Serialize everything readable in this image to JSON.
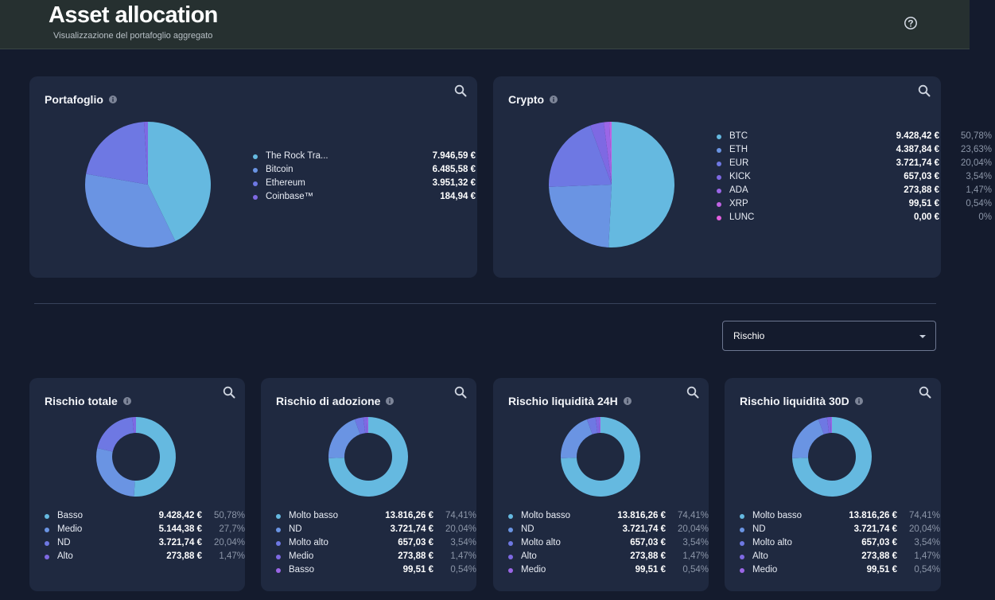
{
  "header": {
    "title": "Asset allocation",
    "subtitle": "Visualizzazione del portafoglio aggregato",
    "help_icon": "help-circle-icon"
  },
  "filter": {
    "selected": "Rischio",
    "icon": "caret-down-icon"
  },
  "colors": {
    "c1": "#65b9e0",
    "c2": "#6a94e3",
    "c3": "#6e78e3",
    "c4": "#7e69e3",
    "c5": "#9b66e6",
    "c6": "#c063e4",
    "c7": "#e35ede",
    "card_bg": "#1f2940",
    "page_bg": "#141b2d"
  },
  "cards": {
    "portafoglio": {
      "title": "Portafoglio",
      "chart_data": {
        "type": "pie",
        "categories": [
          "The Rock Tra...",
          "Bitcoin",
          "Ethereum",
          "Coinbase™"
        ],
        "values": [
          42.8,
          34.93,
          21.28,
          1
        ],
        "colors": [
          "#65b9e0",
          "#6a94e3",
          "#6e78e3",
          "#7e69e3"
        ]
      },
      "items": [
        {
          "label": "The Rock Tra...",
          "value": "7.946,59 €",
          "pct": "42,8%",
          "color": "#65b9e0"
        },
        {
          "label": "Bitcoin",
          "value": "6.485,58 €",
          "pct": "34,93%",
          "color": "#6a94e3"
        },
        {
          "label": "Ethereum",
          "value": "3.951,32 €",
          "pct": "21,28%",
          "color": "#6e78e3"
        },
        {
          "label": "Coinbase™",
          "value": "184,94 €",
          "pct": "1%",
          "color": "#7e69e3"
        }
      ]
    },
    "crypto": {
      "title": "Crypto",
      "chart_data": {
        "type": "pie",
        "categories": [
          "BTC",
          "ETH",
          "EUR",
          "KICK",
          "ADA",
          "XRP",
          "LUNC"
        ],
        "values": [
          50.78,
          23.63,
          20.04,
          3.54,
          1.47,
          0.54,
          0
        ],
        "colors": [
          "#65b9e0",
          "#6a94e3",
          "#6e78e3",
          "#7e69e3",
          "#9b66e6",
          "#c063e4",
          "#e35ede"
        ]
      },
      "items": [
        {
          "label": "BTC",
          "value": "9.428,42 €",
          "pct": "50,78%",
          "color": "#65b9e0"
        },
        {
          "label": "ETH",
          "value": "4.387,84 €",
          "pct": "23,63%",
          "color": "#6a94e3"
        },
        {
          "label": "EUR",
          "value": "3.721,74 €",
          "pct": "20,04%",
          "color": "#6e78e3"
        },
        {
          "label": "KICK",
          "value": "657,03 €",
          "pct": "3,54%",
          "color": "#7e69e3"
        },
        {
          "label": "ADA",
          "value": "273,88 €",
          "pct": "1,47%",
          "color": "#9b66e6"
        },
        {
          "label": "XRP",
          "value": "99,51 €",
          "pct": "0,54%",
          "color": "#c063e4"
        },
        {
          "label": "LUNC",
          "value": "0,00 €",
          "pct": "0%",
          "color": "#e35ede"
        }
      ]
    },
    "rischio_totale": {
      "title": "Rischio totale",
      "chart_data": {
        "type": "pie",
        "categories": [
          "Basso",
          "Medio",
          "ND",
          "Alto"
        ],
        "values": [
          50.78,
          27.7,
          20.04,
          1.47
        ],
        "colors": [
          "#65b9e0",
          "#6a94e3",
          "#6e78e3",
          "#7e69e3"
        ]
      },
      "items": [
        {
          "label": "Basso",
          "value": "9.428,42 €",
          "pct": "50,78%",
          "color": "#65b9e0"
        },
        {
          "label": "Medio",
          "value": "5.144,38 €",
          "pct": "27,7%",
          "color": "#6a94e3"
        },
        {
          "label": "ND",
          "value": "3.721,74 €",
          "pct": "20,04%",
          "color": "#6e78e3"
        },
        {
          "label": "Alto",
          "value": "273,88 €",
          "pct": "1,47%",
          "color": "#7e69e3"
        }
      ]
    },
    "rischio_adozione": {
      "title": "Rischio di adozione",
      "chart_data": {
        "type": "pie",
        "categories": [
          "Molto basso",
          "ND",
          "Molto alto",
          "Medio",
          "Basso"
        ],
        "values": [
          74.41,
          20.04,
          3.54,
          1.47,
          0.54
        ],
        "colors": [
          "#65b9e0",
          "#6a94e3",
          "#6e78e3",
          "#7e69e3",
          "#9b66e6"
        ]
      },
      "items": [
        {
          "label": "Molto basso",
          "value": "13.816,26 €",
          "pct": "74,41%",
          "color": "#65b9e0"
        },
        {
          "label": "ND",
          "value": "3.721,74 €",
          "pct": "20,04%",
          "color": "#6a94e3"
        },
        {
          "label": "Molto alto",
          "value": "657,03 €",
          "pct": "3,54%",
          "color": "#6e78e3"
        },
        {
          "label": "Medio",
          "value": "273,88 €",
          "pct": "1,47%",
          "color": "#7e69e3"
        },
        {
          "label": "Basso",
          "value": "99,51 €",
          "pct": "0,54%",
          "color": "#9b66e6"
        }
      ]
    },
    "rischio_liq_24h": {
      "title": "Rischio liquidità 24H",
      "chart_data": {
        "type": "pie",
        "categories": [
          "Molto basso",
          "ND",
          "Molto alto",
          "Alto",
          "Medio"
        ],
        "values": [
          74.41,
          20.04,
          3.54,
          1.47,
          0.54
        ],
        "colors": [
          "#65b9e0",
          "#6a94e3",
          "#6e78e3",
          "#7e69e3",
          "#9b66e6"
        ]
      },
      "items": [
        {
          "label": "Molto basso",
          "value": "13.816,26 €",
          "pct": "74,41%",
          "color": "#65b9e0"
        },
        {
          "label": "ND",
          "value": "3.721,74 €",
          "pct": "20,04%",
          "color": "#6a94e3"
        },
        {
          "label": "Molto alto",
          "value": "657,03 €",
          "pct": "3,54%",
          "color": "#6e78e3"
        },
        {
          "label": "Alto",
          "value": "273,88 €",
          "pct": "1,47%",
          "color": "#7e69e3"
        },
        {
          "label": "Medio",
          "value": "99,51 €",
          "pct": "0,54%",
          "color": "#9b66e6"
        }
      ]
    },
    "rischio_liq_30d": {
      "title": "Rischio liquidità 30D",
      "chart_data": {
        "type": "pie",
        "categories": [
          "Molto basso",
          "ND",
          "Molto alto",
          "Alto",
          "Medio"
        ],
        "values": [
          74.41,
          20.04,
          3.54,
          1.47,
          0.54
        ],
        "colors": [
          "#65b9e0",
          "#6a94e3",
          "#6e78e3",
          "#7e69e3",
          "#9b66e6"
        ]
      },
      "items": [
        {
          "label": "Molto basso",
          "value": "13.816,26 €",
          "pct": "74,41%",
          "color": "#65b9e0"
        },
        {
          "label": "ND",
          "value": "3.721,74 €",
          "pct": "20,04%",
          "color": "#6a94e3"
        },
        {
          "label": "Molto alto",
          "value": "657,03 €",
          "pct": "3,54%",
          "color": "#6e78e3"
        },
        {
          "label": "Alto",
          "value": "273,88 €",
          "pct": "1,47%",
          "color": "#7e69e3"
        },
        {
          "label": "Medio",
          "value": "99,51 €",
          "pct": "0,54%",
          "color": "#9b66e6"
        }
      ]
    }
  }
}
